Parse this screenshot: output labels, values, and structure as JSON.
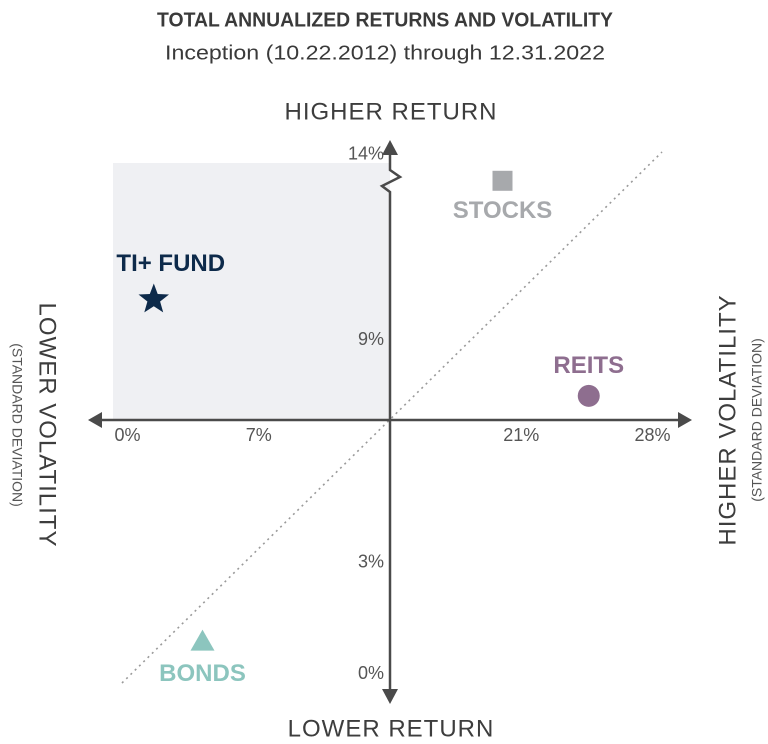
{
  "chart_data": {
    "type": "scatter",
    "title": "TOTAL ANNUALIZED RETURNS AND VOLATILITY",
    "subtitle": "Inception (10.22.2012) through 12.31.2022",
    "y_label_top": "HIGHER RETURN",
    "y_label_bottom": "LOWER RETURN",
    "x_label_left": "LOWER VOLATILITY",
    "x_label_left_sub": "(STANDARD DEVIATION)",
    "x_label_right": "HIGHER VOLATILITY",
    "x_label_right_sub": "(STANDARD DEVIATION)",
    "xlim": [
      -2,
      30
    ],
    "ylim": [
      -0.7,
      14.4
    ],
    "xticks": [
      {
        "value": 0,
        "label": "0%"
      },
      {
        "value": 7,
        "label": "7%"
      },
      {
        "value": 21,
        "label": "21%"
      },
      {
        "value": 28,
        "label": "28%"
      }
    ],
    "yticks": [
      {
        "value": 0,
        "label": "0%"
      },
      {
        "value": 3,
        "label": "3%"
      },
      {
        "value": 9,
        "label": "9%"
      },
      {
        "value": 14,
        "label": "14%"
      }
    ],
    "series": [
      {
        "name": "TI+ FUND",
        "color": "#0d2a4a",
        "marker": "star",
        "x": [
          1.4
        ],
        "values": [
          10.1
        ]
      },
      {
        "name": "STOCKS",
        "color": "#a7a9ac",
        "marker": "square",
        "x": [
          20.0
        ],
        "values": [
          13.3
        ]
      },
      {
        "name": "REITS",
        "color": "#8e6e8f",
        "marker": "circle",
        "x": [
          24.6
        ],
        "values": [
          7.5
        ]
      },
      {
        "name": "BONDS",
        "color": "#8cc5be",
        "marker": "triangle",
        "x": [
          4.0
        ],
        "values": [
          0.9
        ]
      }
    ]
  }
}
